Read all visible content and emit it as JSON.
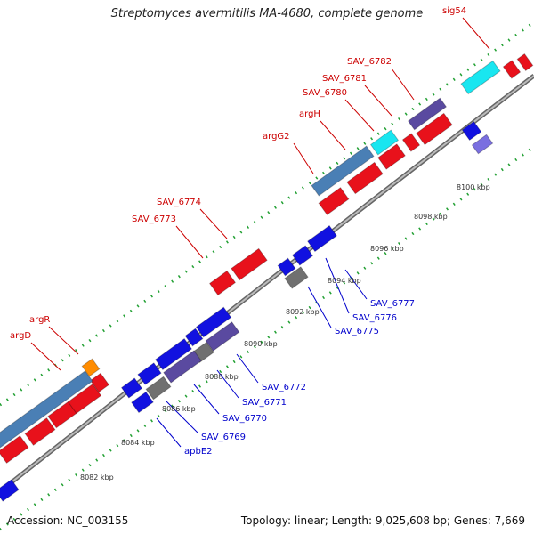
{
  "title": "Streptomyces avermitilis MA-4680, complete genome",
  "accession": "Accession: NC_003155",
  "summary": "Topology: linear; Length: 9,025,608 bp; Genes: 7,669",
  "colors": {
    "forward": "#e8111b",
    "reverse": "#1111e0",
    "steel": "#4a7fb5",
    "cyan": "#19e6f0",
    "orange": "#ff8c00",
    "gray": "#707070",
    "purple": "#5a4aa0",
    "dot": "#22a033",
    "axis": "#888888"
  },
  "forward_labels": [
    "sig54",
    "SAV_6782",
    "SAV_6781",
    "SAV_6780",
    "argH",
    "argG2",
    "SAV_6774",
    "SAV_6773",
    "argR",
    "argD"
  ],
  "reverse_labels": [
    "SAV_6777",
    "SAV_6776",
    "SAV_6775",
    "SAV_6772",
    "SAV_6771",
    "SAV_6770",
    "SAV_6769",
    "apbE2"
  ],
  "ticks": [
    "8082 kbp",
    "8084 kbp",
    "8086 kbp",
    "8088 kbp",
    "8090 kbp",
    "8092 kbp",
    "8094 kbp",
    "8096 kbp",
    "8098 kbp",
    "8100 kbp"
  ]
}
